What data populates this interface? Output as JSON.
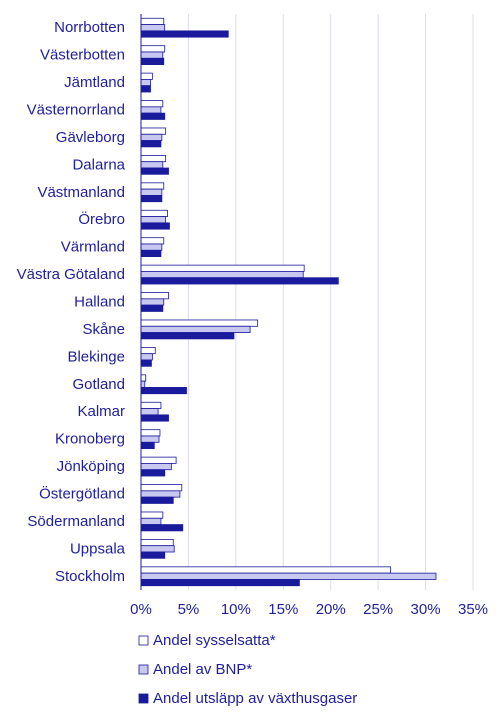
{
  "chart_data": {
    "type": "bar",
    "orientation": "horizontal",
    "categories": [
      "Norrbotten",
      "Västerbotten",
      "Jämtland",
      "Västernorrland",
      "Gävleborg",
      "Dalarna",
      "Västmanland",
      "Örebro",
      "Värmland",
      "Västra Götaland",
      "Halland",
      "Skåne",
      "Blekinge",
      "Gotland",
      "Kalmar",
      "Kronoberg",
      "Jönköping",
      "Östergötland",
      "Södermanland",
      "Uppsala",
      "Stockholm"
    ],
    "series": [
      {
        "name": "Andel sysselsatta*",
        "color": "#ffffff",
        "values": [
          2.4,
          2.5,
          1.2,
          2.3,
          2.6,
          2.6,
          2.4,
          2.8,
          2.4,
          17.2,
          2.9,
          12.3,
          1.5,
          0.5,
          2.1,
          2.0,
          3.7,
          4.3,
          2.3,
          3.4,
          26.3
        ]
      },
      {
        "name": "Andel av BNP*",
        "color": "#c8c8f0",
        "values": [
          2.5,
          2.3,
          1.0,
          2.1,
          2.2,
          2.3,
          2.2,
          2.6,
          2.2,
          17.1,
          2.4,
          11.5,
          1.2,
          0.4,
          1.8,
          1.9,
          3.2,
          4.1,
          2.1,
          3.5,
          31.1
        ]
      },
      {
        "name": "Andel utsläpp av växthusgaser",
        "color": "#1a1a9c",
        "values": [
          9.2,
          2.4,
          1.0,
          2.5,
          2.1,
          2.9,
          2.2,
          3.0,
          2.1,
          20.8,
          2.3,
          9.8,
          1.1,
          4.8,
          2.9,
          1.4,
          2.5,
          3.4,
          4.4,
          2.5,
          16.7
        ]
      }
    ],
    "xlim": [
      0,
      35
    ],
    "xticks": [
      0,
      5,
      10,
      15,
      20,
      25,
      30,
      35
    ],
    "tick_suffix": "%",
    "grid": true,
    "legend_position": "bottom"
  }
}
